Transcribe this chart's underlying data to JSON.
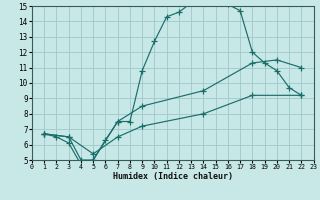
{
  "xlabel": "Humidex (Indice chaleur)",
  "bg_color": "#c8e8e8",
  "grid_color": "#a0c8c8",
  "line_color": "#1a6e6a",
  "xlim": [
    0,
    23
  ],
  "ylim": [
    5,
    15
  ],
  "yticks": [
    5,
    6,
    7,
    8,
    9,
    10,
    11,
    12,
    13,
    14,
    15
  ],
  "xticks": [
    0,
    1,
    2,
    3,
    4,
    5,
    6,
    7,
    8,
    9,
    10,
    11,
    12,
    13,
    14,
    15,
    16,
    17,
    18,
    19,
    20,
    21,
    22,
    23
  ],
  "curve1_x": [
    1,
    2,
    3,
    4,
    5,
    6,
    7,
    8,
    9,
    10,
    11,
    12,
    13,
    14,
    15,
    16,
    17,
    18,
    19,
    20,
    21,
    22
  ],
  "curve1_y": [
    6.7,
    6.5,
    6.1,
    4.7,
    5.0,
    6.3,
    7.5,
    7.5,
    10.8,
    12.7,
    14.3,
    14.6,
    15.2,
    15.3,
    15.3,
    15.1,
    14.7,
    12.0,
    11.3,
    10.8,
    9.7,
    9.2
  ],
  "curve2_x": [
    1,
    3,
    4,
    5,
    7,
    9,
    14,
    18,
    20,
    22
  ],
  "curve2_y": [
    6.7,
    6.5,
    5.0,
    5.0,
    7.5,
    8.5,
    9.5,
    11.3,
    11.5,
    11.0
  ],
  "curve3_x": [
    1,
    3,
    5,
    7,
    9,
    14,
    18,
    22
  ],
  "curve3_y": [
    6.7,
    6.5,
    5.4,
    6.5,
    7.2,
    8.0,
    9.2,
    9.2
  ]
}
